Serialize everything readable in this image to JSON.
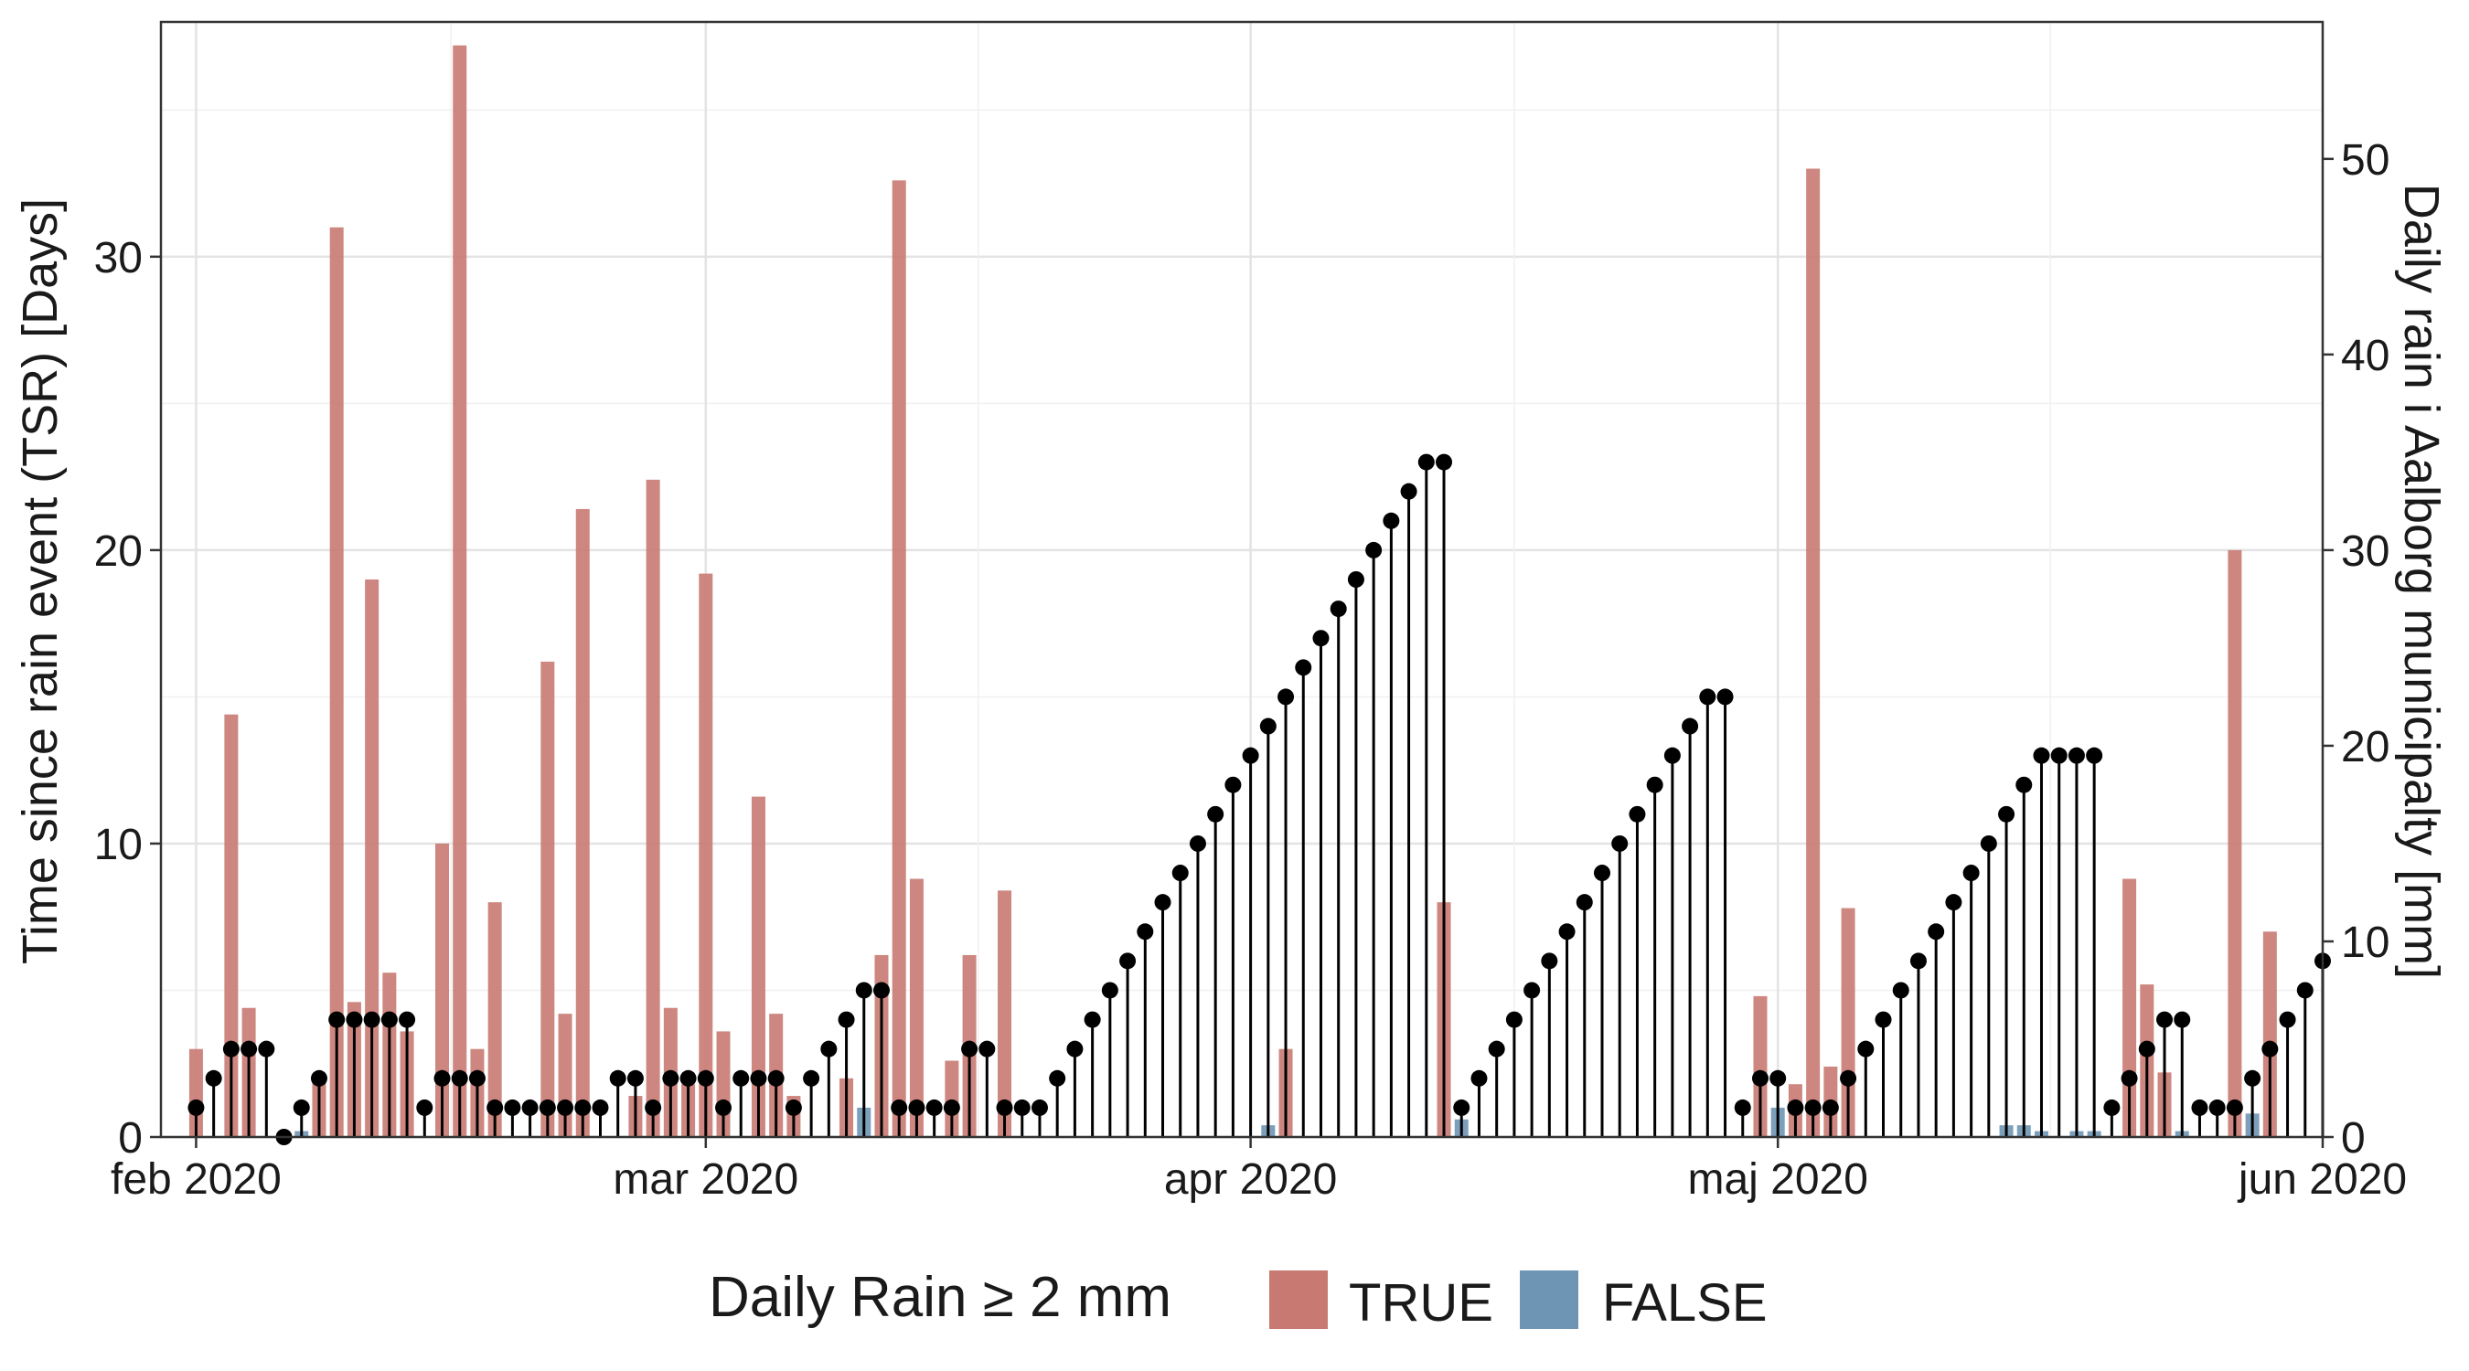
{
  "chart_data": {
    "type": "bar+lollipop",
    "y_left_label": "Time since rain event (TSR) [Days]",
    "y_right_label": "Daily rain i Aalborg municipalty [mm]",
    "y_left_ticks": [
      "0",
      "10",
      "20",
      "30"
    ],
    "y_right_ticks": [
      "0",
      "10",
      "20",
      "30",
      "40",
      "50"
    ],
    "ylim_left": [
      0,
      38
    ],
    "ylim_right": [
      0,
      57
    ],
    "x_range": [
      "2020-01-30",
      "2020-06-01"
    ],
    "x_ticks": [
      {
        "date": "2020-02-01",
        "label": "feb 2020"
      },
      {
        "date": "2020-03-01",
        "label": "mar 2020"
      },
      {
        "date": "2020-04-01",
        "label": "apr 2020"
      },
      {
        "date": "2020-05-01",
        "label": "maj 2020"
      },
      {
        "date": "2020-06-01",
        "label": "jun 2020"
      }
    ],
    "grid": true,
    "legend": {
      "title": "Daily Rain ≥ 2 mm",
      "position": "bottom",
      "entries": [
        {
          "label": "TRUE",
          "color": "#c87a72"
        },
        {
          "label": "FALSE",
          "color": "#6e96b4"
        }
      ]
    },
    "colors": {
      "rain_true": "#c87a72",
      "rain_false": "#6e96b4",
      "tsr": "#000000"
    },
    "start_date": "2020-02-01",
    "rain_mm": [
      4.5,
      0,
      21.6,
      6.6,
      0,
      0,
      0.3,
      3,
      46.5,
      6.9,
      28.5,
      8.4,
      5.4,
      0,
      15,
      55.8,
      4.5,
      12,
      0,
      0,
      24.3,
      6.3,
      32.1,
      0,
      0,
      2.1,
      33.6,
      6.6,
      2.7,
      28.8,
      5.4,
      0,
      17.4,
      6.3,
      2.1,
      0,
      0,
      3,
      1.5,
      9.3,
      48.9,
      13.2,
      0,
      3.9,
      9.3,
      0,
      12.6,
      0,
      0,
      0,
      0,
      0,
      0,
      0,
      0,
      0,
      0,
      0,
      0,
      0,
      0,
      0.6,
      4.5,
      0,
      0,
      0,
      0,
      0,
      0,
      0,
      0,
      12,
      0.9,
      0,
      0,
      0,
      0,
      0,
      0,
      0,
      0,
      0,
      0,
      0,
      0,
      0,
      0,
      0,
      0,
      7.2,
      1.5,
      2.7,
      49.5,
      3.6,
      11.7,
      0,
      0,
      0,
      0,
      0,
      0,
      0,
      0,
      0.6,
      0.6,
      0.3,
      0,
      0.3,
      0.3,
      0,
      13.2,
      7.8,
      3.3,
      0.3,
      0,
      0,
      30,
      1.2,
      10.5,
      0,
      0,
      0,
      0,
      0,
      0,
      0
    ],
    "tsr_days": [
      1,
      2,
      3,
      3,
      3,
      0,
      1,
      2,
      4,
      4,
      4,
      4,
      4,
      1,
      2,
      2,
      2,
      1,
      1,
      1,
      1,
      1,
      1,
      1,
      2,
      2,
      1,
      2,
      2,
      2,
      1,
      2,
      2,
      2,
      1,
      2,
      3,
      4,
      5,
      5,
      1,
      1,
      1,
      1,
      3,
      3,
      1,
      1,
      1,
      2,
      3,
      4,
      5,
      6,
      7,
      8,
      9,
      10,
      11,
      12,
      13,
      14,
      15,
      16,
      17,
      18,
      19,
      20,
      21,
      22,
      23,
      23,
      1,
      2,
      3,
      4,
      5,
      6,
      7,
      8,
      9,
      10,
      11,
      12,
      13,
      14,
      15,
      15,
      1,
      2,
      2,
      1,
      1,
      1,
      2,
      3,
      4,
      5,
      6,
      7,
      8,
      9,
      10,
      11,
      12,
      13,
      13,
      13,
      13,
      1,
      2,
      3,
      4,
      4,
      1,
      1,
      1,
      2,
      3,
      4,
      5,
      6
    ]
  }
}
